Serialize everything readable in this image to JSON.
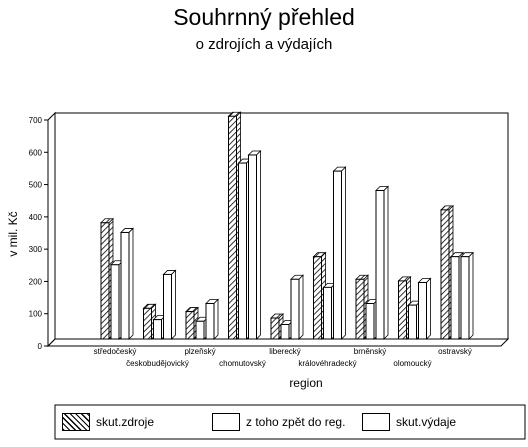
{
  "chart_data": {
    "type": "bar",
    "title": "Souhrnný přehled",
    "subtitle": "o zdrojích a výdajích",
    "xlabel": "region",
    "ylabel": "v mil. Kč",
    "ylim": [
      0,
      700
    ],
    "yticks": [
      "0",
      "100",
      "200",
      "300",
      "400",
      "500",
      "600",
      "700"
    ],
    "categories": [
      "středočeský",
      "českobudějovický",
      "plzeňský",
      "chomutovský",
      "liberecký",
      "královéhradecký",
      "brněnský",
      "olomoucký",
      "ostravský"
    ],
    "series": [
      {
        "name": "skut.zdroje",
        "values": [
          360,
          95,
          85,
          690,
          65,
          255,
          185,
          180,
          400
        ],
        "pattern": "hatched"
      },
      {
        "name": "z toho zpět do reg.",
        "values": [
          230,
          60,
          55,
          545,
          45,
          160,
          110,
          105,
          255
        ],
        "pattern": "white"
      },
      {
        "name": "skut.výdaje",
        "values": [
          330,
          200,
          110,
          570,
          185,
          520,
          460,
          175,
          255
        ],
        "pattern": "white"
      }
    ],
    "grid": false,
    "legend_position": "bottom"
  }
}
